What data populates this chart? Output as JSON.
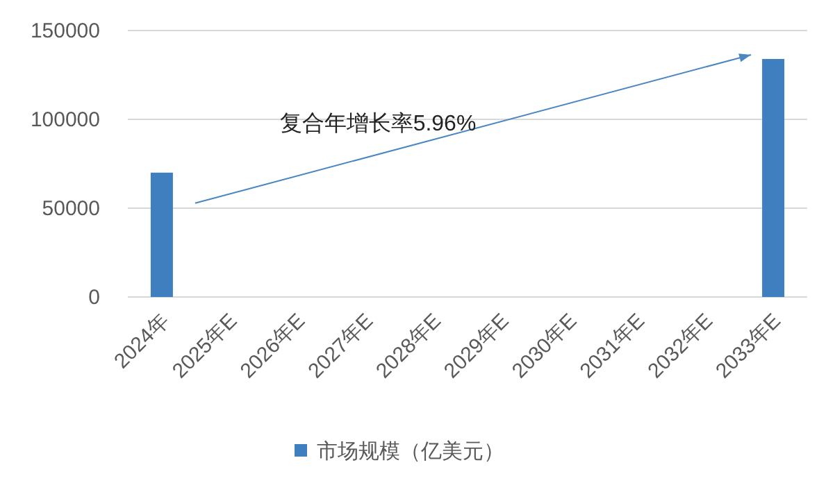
{
  "chart_data": {
    "type": "bar",
    "categories": [
      "2024年",
      "2025年E",
      "2026年E",
      "2027年E",
      "2028年E",
      "2029年E",
      "2030年E",
      "2031年E",
      "2032年E",
      "2033年E"
    ],
    "series": [
      {
        "name": "市场规模（亿美元）",
        "color": "#3f7fbf",
        "values": [
          70000,
          null,
          null,
          null,
          null,
          null,
          null,
          null,
          null,
          134000
        ]
      }
    ],
    "ylim": [
      0,
      150000
    ],
    "yticks": [
      0,
      50000,
      100000,
      150000
    ],
    "grid": "y",
    "legend": "bottom",
    "annotations": [
      "复合年增长率5.96%"
    ]
  }
}
